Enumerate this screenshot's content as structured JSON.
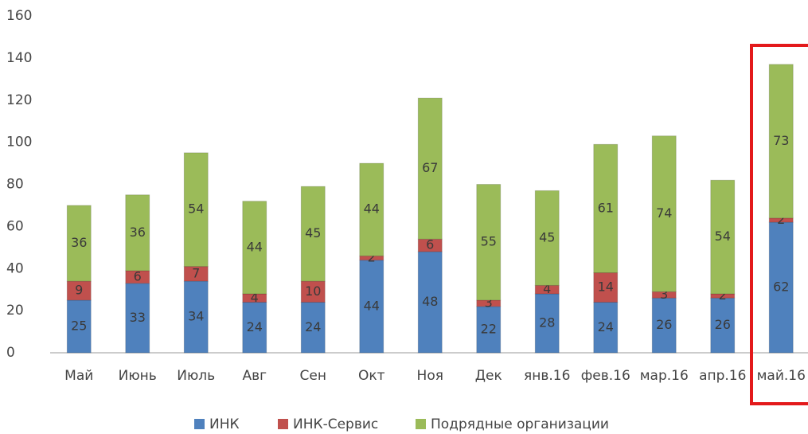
{
  "chart_data": {
    "type": "stacked-bar",
    "categories": [
      "Май",
      "Июнь",
      "Июль",
      "Авг",
      "Сен",
      "Окт",
      "Ноя",
      "Дек",
      "янв.16",
      "фев.16",
      "мар.16",
      "апр.16",
      "май.16"
    ],
    "series": [
      {
        "name": "ИНК",
        "color": "#4f81bd",
        "values": [
          25,
          33,
          34,
          24,
          24,
          44,
          48,
          22,
          28,
          24,
          26,
          26,
          62
        ]
      },
      {
        "name": "ИНК-Сервис",
        "color": "#c0504d",
        "values": [
          9,
          6,
          7,
          4,
          10,
          2,
          6,
          3,
          4,
          14,
          3,
          2,
          2
        ]
      },
      {
        "name": "Подрядные организации",
        "color": "#9bbb59",
        "values": [
          36,
          36,
          54,
          44,
          45,
          44,
          67,
          55,
          45,
          61,
          74,
          54,
          73
        ]
      }
    ],
    "ylim": [
      0,
      160
    ],
    "yticks": [
      0,
      20,
      40,
      60,
      80,
      100,
      120,
      140,
      160
    ],
    "grid": false,
    "legend": "bottom"
  }
}
